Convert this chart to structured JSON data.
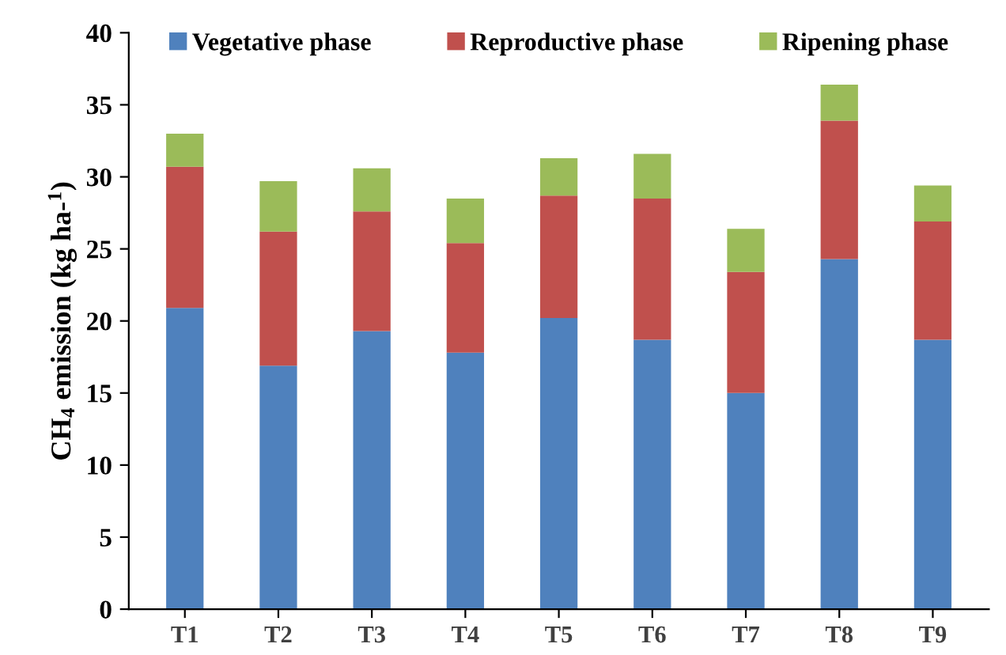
{
  "chart_data": {
    "type": "bar",
    "stacked": true,
    "ylabel": "CH$_{4}$ emission (kg ha-$^{1}$)",
    "categories": [
      "T1",
      "T2",
      "T3",
      "T4",
      "T5",
      "T6",
      "T7",
      "T8",
      "T9"
    ],
    "series": [
      {
        "name": "Vegetative phase",
        "color": "#4f81bd",
        "values": [
          20.9,
          16.9,
          19.3,
          17.8,
          20.2,
          18.7,
          15.0,
          24.3,
          18.7
        ]
      },
      {
        "name": "Reproductive phase",
        "color": "#c0504d",
        "values": [
          9.8,
          9.3,
          8.3,
          7.6,
          8.5,
          9.8,
          8.4,
          9.6,
          8.2
        ]
      },
      {
        "name": "Ripening phase",
        "color": "#9bbb59",
        "values": [
          2.3,
          3.5,
          3.0,
          3.1,
          2.6,
          3.1,
          3.0,
          2.5,
          2.5
        ]
      }
    ],
    "ylim": [
      0,
      40
    ],
    "yticks": [
      0,
      5,
      10,
      15,
      20,
      25,
      30,
      35,
      40
    ],
    "grid": false,
    "legend": "top"
  }
}
